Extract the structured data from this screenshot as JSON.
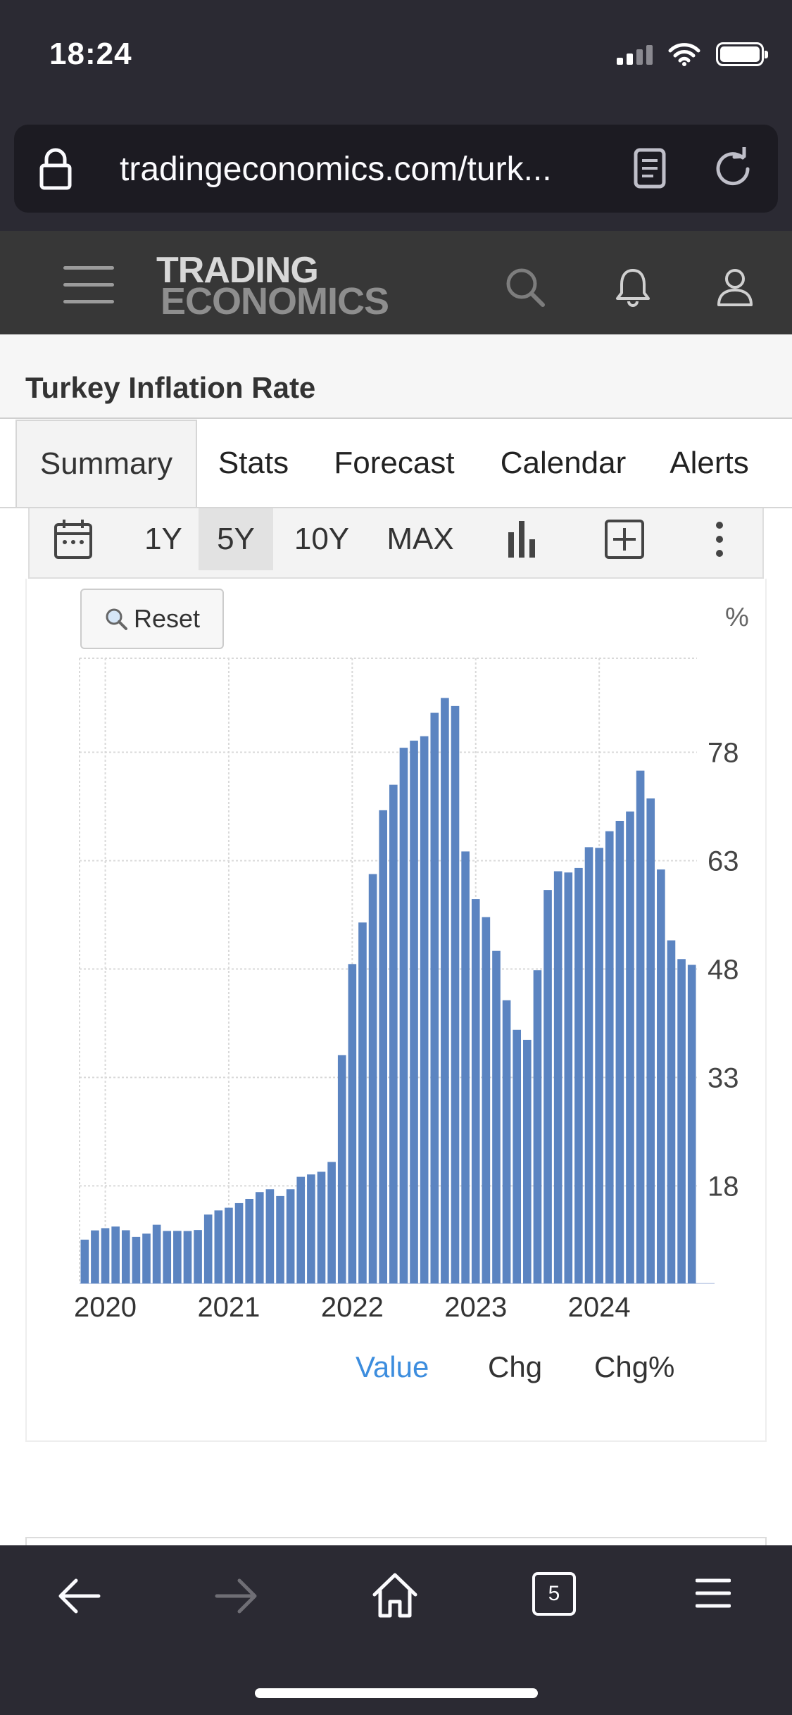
{
  "status_bar": {
    "time": "18:24"
  },
  "browser": {
    "url": "tradingeconomics.com/turk...",
    "tab_count": "5"
  },
  "site": {
    "logo_line1": "TRADING",
    "logo_line2": "ECONOMICS"
  },
  "page": {
    "title": "Turkey Inflation Rate"
  },
  "tabs": [
    {
      "label": "Summary",
      "active": true
    },
    {
      "label": "Stats",
      "active": false
    },
    {
      "label": "Forecast",
      "active": false
    },
    {
      "label": "Calendar",
      "active": false
    },
    {
      "label": "Alerts",
      "active": false
    }
  ],
  "toolbar": {
    "ranges": [
      {
        "label": "1Y",
        "active": false
      },
      {
        "label": "5Y",
        "active": true
      },
      {
        "label": "10Y",
        "active": false
      },
      {
        "label": "MAX",
        "active": false
      }
    ],
    "reset_label": "Reset"
  },
  "legend": [
    {
      "label": "Value",
      "active": true
    },
    {
      "label": "Chg",
      "active": false
    },
    {
      "label": "Chg%",
      "active": false
    }
  ],
  "chart_data": {
    "type": "bar",
    "title": "",
    "ylabel": "%",
    "xlabel": "",
    "x_ticks": [
      "2020",
      "2021",
      "2022",
      "2023",
      "2024"
    ],
    "y_ticks": [
      18,
      33,
      48,
      63,
      78
    ],
    "ylim": [
      4.5,
      91
    ],
    "y_axis_side": "right",
    "grid": true,
    "color": "#5b84c1",
    "series": [
      {
        "start": "2019-11",
        "frequency": "monthly",
        "values": [
          10.56,
          11.84,
          12.15,
          12.37,
          11.86,
          10.94,
          11.39,
          12.62,
          11.76,
          11.77,
          11.75,
          11.89,
          14.03,
          14.6,
          14.97,
          15.61,
          16.19,
          17.14,
          17.53,
          16.59,
          17.53,
          19.25,
          19.58,
          19.95,
          21.31,
          36.08,
          48.69,
          54.44,
          61.14,
          69.97,
          73.5,
          78.62,
          79.6,
          80.21,
          83.45,
          85.51,
          84.39,
          64.27,
          57.68,
          55.18,
          50.51,
          43.68,
          39.59,
          38.21,
          47.83,
          58.94,
          61.53,
          61.36,
          61.98,
          64.86,
          64.77,
          67.07,
          68.5,
          69.8,
          75.45,
          71.6,
          61.78,
          51.97,
          49.38,
          48.58
        ]
      }
    ]
  },
  "colors": {
    "browser_chrome": "#2b2a33",
    "site_header": "#373737",
    "bar": "#5b84c1",
    "legend_active": "#3c8dde"
  },
  "icons": {
    "url_bar": [
      "lock-icon",
      "reader-view-icon",
      "reload-icon"
    ],
    "header": [
      "menu-icon",
      "search-icon",
      "bell-icon",
      "user-icon"
    ],
    "toolbar": [
      "calendar-icon",
      "bar-chart-icon",
      "add-indicator-icon",
      "more-icon"
    ],
    "bottom_nav": [
      "back-icon",
      "forward-icon",
      "home-icon",
      "tabs-icon",
      "browser-menu-icon"
    ]
  }
}
